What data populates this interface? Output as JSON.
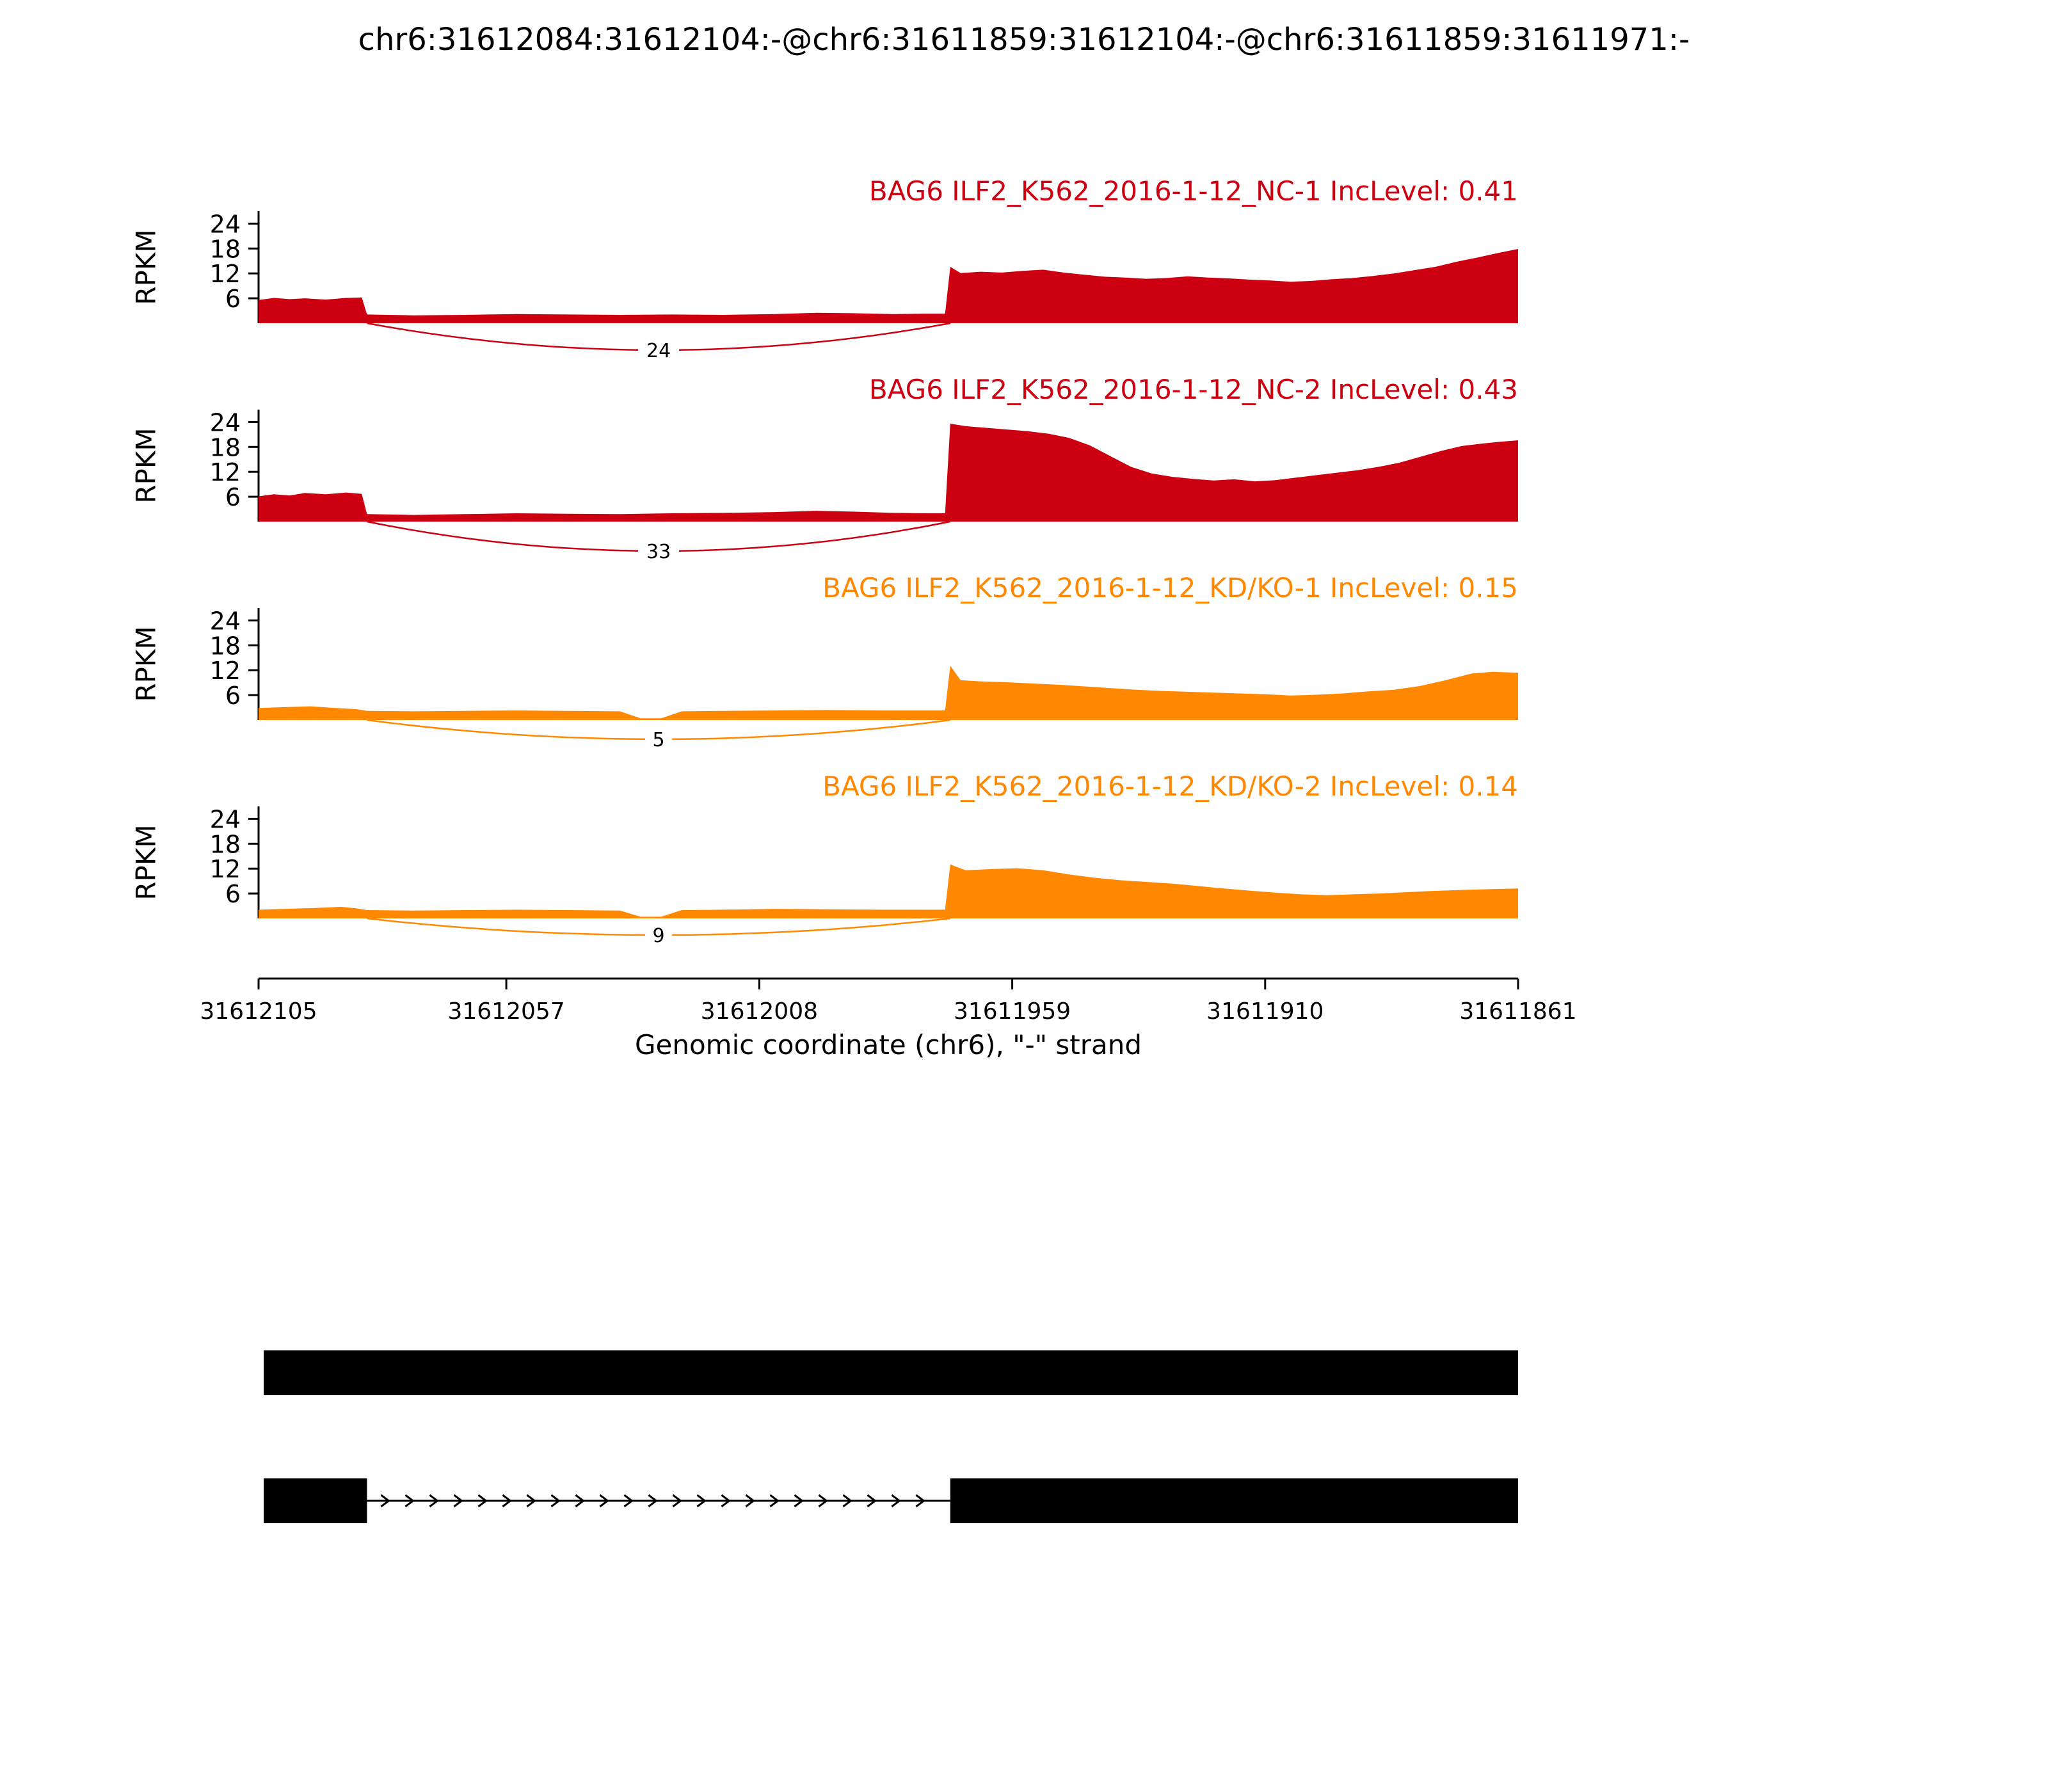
{
  "title": "chr6:31612084:31612104:-@chr6:31611859:31612104:-@chr6:31611859:31611971:-",
  "chart_data": {
    "type": "area",
    "title": "chr6:31612084:31612104:-@chr6:31611859:31612104:-@chr6:31611859:31611971:-",
    "y_axis": {
      "title": "RPKM",
      "ticks": [
        6,
        12,
        18,
        24
      ],
      "max": 27
    },
    "x_axis": {
      "label": "Genomic coordinate (chr6), \"-\" strand",
      "start": 31612105,
      "end": 31611861,
      "ticks": [
        31612105,
        31612057,
        31612008,
        31611959,
        31611910,
        31611861
      ]
    },
    "tracks": [
      {
        "label": "BAG6 ILF2_K562_2016-1-12_NC-1 IncLevel: 0.41",
        "color": "#CC0011",
        "inc_level": 0.41,
        "junction": {
          "from": 31612084,
          "to": 31611971,
          "count": 24
        },
        "coverage": [
          [
            31612105,
            5.6
          ],
          [
            31612102,
            6.1
          ],
          [
            31612099,
            5.8
          ],
          [
            31612096,
            6.0
          ],
          [
            31612092,
            5.7
          ],
          [
            31612088,
            6.1
          ],
          [
            31612085,
            6.2
          ],
          [
            31612084,
            2.1
          ],
          [
            31612075,
            1.9
          ],
          [
            31612065,
            2.0
          ],
          [
            31612055,
            2.2
          ],
          [
            31612045,
            2.1
          ],
          [
            31612035,
            2.0
          ],
          [
            31612025,
            2.1
          ],
          [
            31612015,
            2.0
          ],
          [
            31612005,
            2.2
          ],
          [
            31611997,
            2.5
          ],
          [
            31611990,
            2.4
          ],
          [
            31611982,
            2.2
          ],
          [
            31611976,
            2.3
          ],
          [
            31611972,
            2.3
          ],
          [
            31611971,
            13.6
          ],
          [
            31611969,
            12.1
          ],
          [
            31611965,
            12.4
          ],
          [
            31611961,
            12.2
          ],
          [
            31611957,
            12.6
          ],
          [
            31611953,
            12.9
          ],
          [
            31611949,
            12.2
          ],
          [
            31611945,
            11.7
          ],
          [
            31611941,
            11.2
          ],
          [
            31611937,
            11.0
          ],
          [
            31611933,
            10.7
          ],
          [
            31611929,
            10.9
          ],
          [
            31611925,
            11.3
          ],
          [
            31611921,
            11.0
          ],
          [
            31611917,
            10.8
          ],
          [
            31611913,
            10.5
          ],
          [
            31611909,
            10.3
          ],
          [
            31611905,
            10.0
          ],
          [
            31611901,
            10.2
          ],
          [
            31611897,
            10.6
          ],
          [
            31611893,
            10.9
          ],
          [
            31611889,
            11.4
          ],
          [
            31611885,
            12.0
          ],
          [
            31611881,
            12.8
          ],
          [
            31611877,
            13.6
          ],
          [
            31611873,
            14.8
          ],
          [
            31611869,
            15.8
          ],
          [
            31611865,
            16.9
          ],
          [
            31611861,
            17.9
          ]
        ]
      },
      {
        "label": "BAG6 ILF2_K562_2016-1-12_NC-2 IncLevel: 0.43",
        "color": "#CC0011",
        "inc_level": 0.43,
        "junction": {
          "from": 31612084,
          "to": 31611971,
          "count": 33
        },
        "coverage": [
          [
            31612105,
            6.1
          ],
          [
            31612102,
            6.6
          ],
          [
            31612099,
            6.3
          ],
          [
            31612096,
            6.9
          ],
          [
            31612092,
            6.6
          ],
          [
            31612088,
            7.0
          ],
          [
            31612085,
            6.7
          ],
          [
            31612084,
            1.8
          ],
          [
            31612075,
            1.6
          ],
          [
            31612065,
            1.8
          ],
          [
            31612055,
            2.0
          ],
          [
            31612045,
            1.9
          ],
          [
            31612035,
            1.8
          ],
          [
            31612025,
            2.0
          ],
          [
            31612015,
            2.1
          ],
          [
            31612005,
            2.3
          ],
          [
            31611997,
            2.6
          ],
          [
            31611990,
            2.4
          ],
          [
            31611982,
            2.1
          ],
          [
            31611976,
            2.0
          ],
          [
            31611972,
            2.0
          ],
          [
            31611971,
            23.6
          ],
          [
            31611968,
            23.0
          ],
          [
            31611964,
            22.6
          ],
          [
            31611960,
            22.2
          ],
          [
            31611956,
            21.8
          ],
          [
            31611952,
            21.2
          ],
          [
            31611948,
            20.2
          ],
          [
            31611944,
            18.4
          ],
          [
            31611940,
            15.8
          ],
          [
            31611936,
            13.2
          ],
          [
            31611932,
            11.6
          ],
          [
            31611928,
            10.8
          ],
          [
            31611924,
            10.3
          ],
          [
            31611920,
            9.9
          ],
          [
            31611916,
            10.2
          ],
          [
            31611912,
            9.7
          ],
          [
            31611908,
            10.0
          ],
          [
            31611904,
            10.6
          ],
          [
            31611900,
            11.2
          ],
          [
            31611896,
            11.8
          ],
          [
            31611892,
            12.4
          ],
          [
            31611888,
            13.2
          ],
          [
            31611884,
            14.2
          ],
          [
            31611880,
            15.6
          ],
          [
            31611876,
            17.0
          ],
          [
            31611872,
            18.2
          ],
          [
            31611868,
            18.8
          ],
          [
            31611865,
            19.2
          ],
          [
            31611861,
            19.6
          ]
        ]
      },
      {
        "label": "BAG6 ILF2_K562_2016-1-12_KD/KO-1 IncLevel: 0.15",
        "color": "#FF8800",
        "inc_level": 0.15,
        "junction": {
          "from": 31612084,
          "to": 31611971,
          "count": 5
        },
        "coverage": [
          [
            31612105,
            2.9
          ],
          [
            31612100,
            3.1
          ],
          [
            31612095,
            3.3
          ],
          [
            31612090,
            2.9
          ],
          [
            31612086,
            2.6
          ],
          [
            31612084,
            2.2
          ],
          [
            31612075,
            2.1
          ],
          [
            31612065,
            2.2
          ],
          [
            31612055,
            2.3
          ],
          [
            31612045,
            2.2
          ],
          [
            31612035,
            2.1
          ],
          [
            31612031,
            0.4
          ],
          [
            31612027,
            0.4
          ],
          [
            31612023,
            2.1
          ],
          [
            31612015,
            2.2
          ],
          [
            31612005,
            2.3
          ],
          [
            31611995,
            2.4
          ],
          [
            31611985,
            2.3
          ],
          [
            31611976,
            2.3
          ],
          [
            31611972,
            2.3
          ],
          [
            31611971,
            13.1
          ],
          [
            31611969,
            9.6
          ],
          [
            31611965,
            9.3
          ],
          [
            31611960,
            9.1
          ],
          [
            31611955,
            8.8
          ],
          [
            31611950,
            8.5
          ],
          [
            31611945,
            8.1
          ],
          [
            31611940,
            7.7
          ],
          [
            31611935,
            7.3
          ],
          [
            31611930,
            7.0
          ],
          [
            31611925,
            6.8
          ],
          [
            31611920,
            6.6
          ],
          [
            31611915,
            6.4
          ],
          [
            31611910,
            6.2
          ],
          [
            31611905,
            5.9
          ],
          [
            31611900,
            6.1
          ],
          [
            31611895,
            6.4
          ],
          [
            31611890,
            6.9
          ],
          [
            31611885,
            7.3
          ],
          [
            31611880,
            8.2
          ],
          [
            31611875,
            9.6
          ],
          [
            31611870,
            11.2
          ],
          [
            31611866,
            11.6
          ],
          [
            31611861,
            11.4
          ]
        ]
      },
      {
        "label": "BAG6 ILF2_K562_2016-1-12_KD/KO-2 IncLevel: 0.14",
        "color": "#FF8800",
        "inc_level": 0.14,
        "junction": {
          "from": 31612084,
          "to": 31611971,
          "count": 9
        },
        "coverage": [
          [
            31612105,
            2.1
          ],
          [
            31612100,
            2.3
          ],
          [
            31612094,
            2.5
          ],
          [
            31612089,
            2.8
          ],
          [
            31612086,
            2.4
          ],
          [
            31612084,
            2.0
          ],
          [
            31612075,
            1.9
          ],
          [
            31612065,
            2.0
          ],
          [
            31612055,
            2.1
          ],
          [
            31612045,
            2.0
          ],
          [
            31612035,
            1.9
          ],
          [
            31612031,
            0.4
          ],
          [
            31612027,
            0.4
          ],
          [
            31612023,
            2.0
          ],
          [
            31612015,
            2.1
          ],
          [
            31612005,
            2.3
          ],
          [
            31611995,
            2.2
          ],
          [
            31611985,
            2.1
          ],
          [
            31611976,
            2.1
          ],
          [
            31611972,
            2.1
          ],
          [
            31611971,
            13.0
          ],
          [
            31611968,
            11.6
          ],
          [
            31611963,
            11.9
          ],
          [
            31611958,
            12.1
          ],
          [
            31611953,
            11.6
          ],
          [
            31611948,
            10.6
          ],
          [
            31611943,
            9.8
          ],
          [
            31611938,
            9.2
          ],
          [
            31611933,
            8.8
          ],
          [
            31611928,
            8.4
          ],
          [
            31611923,
            7.8
          ],
          [
            31611918,
            7.2
          ],
          [
            31611913,
            6.7
          ],
          [
            31611908,
            6.2
          ],
          [
            31611903,
            5.8
          ],
          [
            31611898,
            5.6
          ],
          [
            31611893,
            5.8
          ],
          [
            31611888,
            6.0
          ],
          [
            31611883,
            6.3
          ],
          [
            31611878,
            6.6
          ],
          [
            31611873,
            6.8
          ],
          [
            31611868,
            7.0
          ],
          [
            31611861,
            7.2
          ]
        ]
      }
    ],
    "structure": {
      "color": "#000000",
      "isoforms": [
        {
          "exons": [
            [
              31612104,
              31611859
            ]
          ]
        },
        {
          "exons": [
            [
              31612104,
              31612084
            ],
            [
              31611971,
              31611859
            ]
          ],
          "intron": [
            31612084,
            31611971
          ]
        }
      ]
    }
  }
}
